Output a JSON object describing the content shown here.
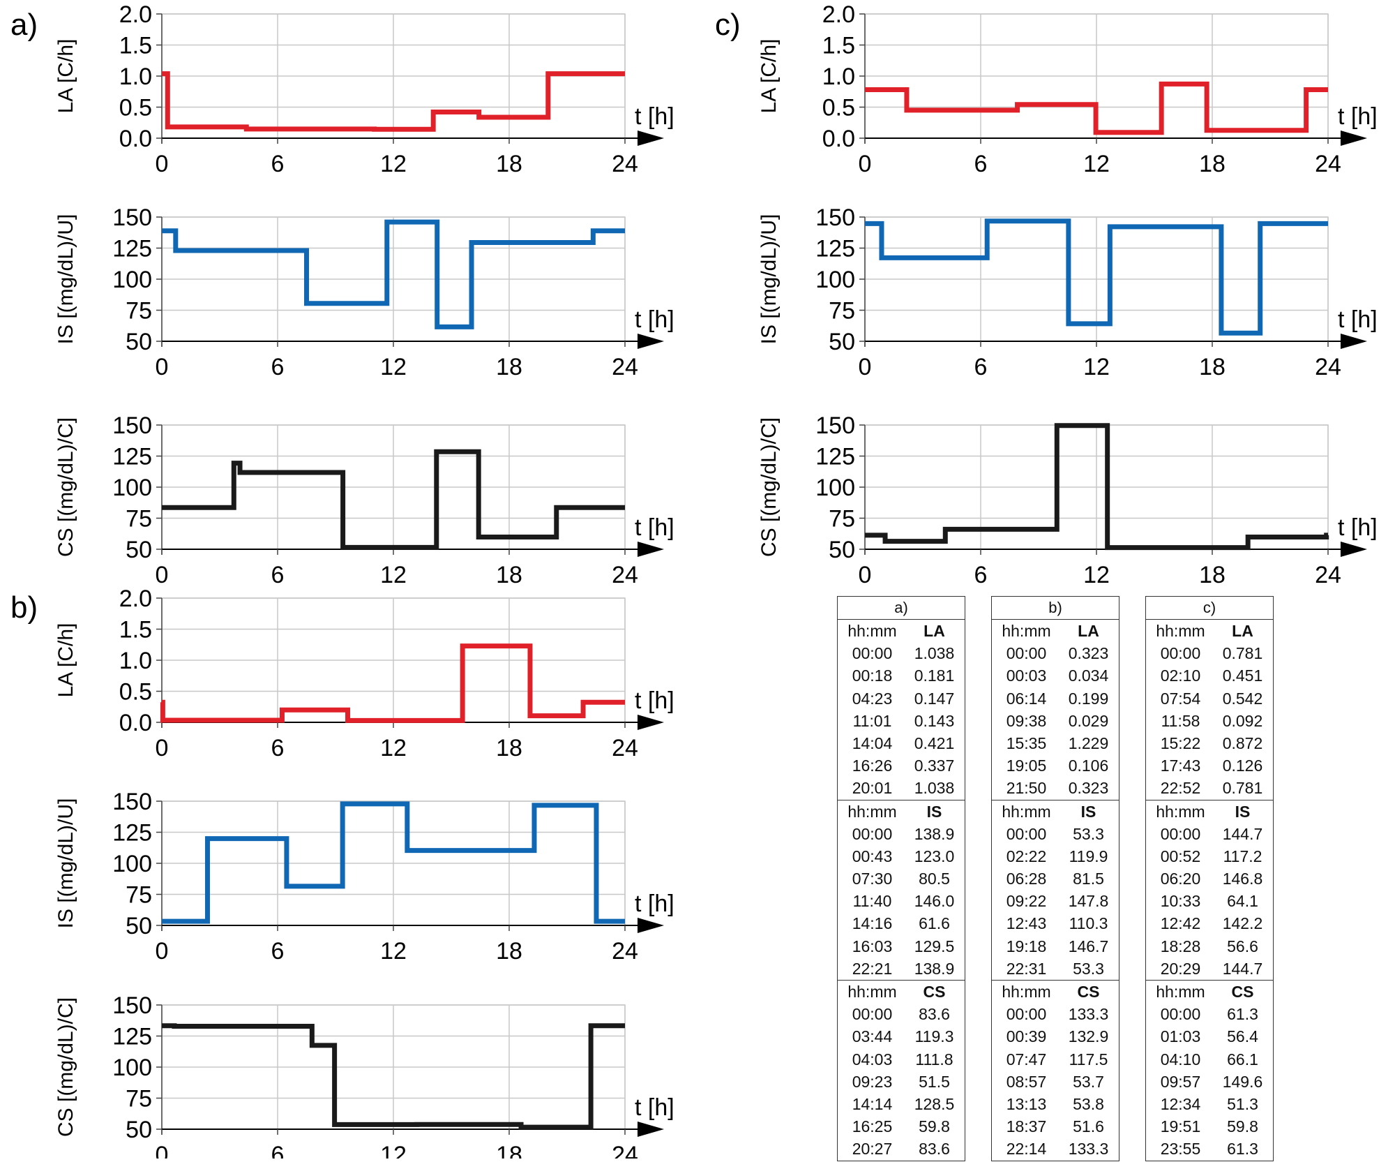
{
  "panel_labels": {
    "a": "a)",
    "b": "b)",
    "c": "c)"
  },
  "axis_labels": {
    "LA": "LA [C/h]",
    "IS": "IS [(mg/dL)/U]",
    "CS": "CS [(mg/dL)/C]",
    "t": "t [h]"
  },
  "colors": {
    "LA": "#e0212a",
    "IS": "#1068b5",
    "CS": "#1a1a1a",
    "grid": "#c8c8c8",
    "axis": "#000000"
  },
  "x_ticks": [
    "0",
    "6",
    "12",
    "18",
    "24"
  ],
  "y_ticks": {
    "LA": [
      "0.0",
      "0.5",
      "1.0",
      "1.5",
      "2.0"
    ],
    "IS": [
      "50",
      "75",
      "100",
      "125",
      "150"
    ],
    "CS": [
      "50",
      "75",
      "100",
      "125",
      "150"
    ]
  },
  "chart_data": [
    {
      "type": "line",
      "panel": "a)",
      "ylabel": "LA [C/h]",
      "xlabel": "t [h]",
      "xlim": [
        0,
        24
      ],
      "ylim": [
        0,
        2
      ],
      "step": true,
      "grid": true,
      "series": [
        {
          "x": [
            "00:00",
            "00:18",
            "04:23",
            "11:01",
            "14:04",
            "16:26",
            "20:01",
            "24:00"
          ],
          "y": [
            1.038,
            0.181,
            0.147,
            0.143,
            0.421,
            0.337,
            1.038,
            1.038
          ]
        }
      ]
    },
    {
      "type": "line",
      "panel": "a)",
      "ylabel": "IS [(mg/dL)/U]",
      "xlabel": "t [h]",
      "xlim": [
        0,
        24
      ],
      "ylim": [
        50,
        150
      ],
      "step": true,
      "grid": true,
      "series": [
        {
          "x": [
            "00:00",
            "00:43",
            "07:30",
            "11:40",
            "14:16",
            "16:03",
            "22:21",
            "24:00"
          ],
          "y": [
            138.9,
            123.0,
            80.5,
            146.0,
            61.6,
            129.5,
            138.9,
            138.9
          ]
        }
      ]
    },
    {
      "type": "line",
      "panel": "a)",
      "ylabel": "CS [(mg/dL)/C]",
      "xlabel": "t [h]",
      "xlim": [
        0,
        24
      ],
      "ylim": [
        50,
        150
      ],
      "step": true,
      "grid": true,
      "series": [
        {
          "x": [
            "00:00",
            "03:44",
            "04:03",
            "09:23",
            "14:14",
            "16:25",
            "20:27",
            "24:00"
          ],
          "y": [
            83.6,
            119.3,
            111.8,
            51.5,
            128.5,
            59.8,
            83.6,
            83.6
          ]
        }
      ]
    },
    {
      "type": "line",
      "panel": "b)",
      "ylabel": "LA [C/h]",
      "xlabel": "t [h]",
      "xlim": [
        0,
        24
      ],
      "ylim": [
        0,
        2
      ],
      "step": true,
      "grid": true,
      "series": [
        {
          "x": [
            "00:00",
            "00:03",
            "06:14",
            "09:38",
            "15:35",
            "19:05",
            "21:50",
            "24:00"
          ],
          "y": [
            0.323,
            0.034,
            0.199,
            0.029,
            1.229,
            0.106,
            0.323,
            0.323
          ]
        }
      ]
    },
    {
      "type": "line",
      "panel": "b)",
      "ylabel": "IS [(mg/dL)/U]",
      "xlabel": "t [h]",
      "xlim": [
        0,
        24
      ],
      "ylim": [
        50,
        150
      ],
      "step": true,
      "grid": true,
      "series": [
        {
          "x": [
            "00:00",
            "02:22",
            "06:28",
            "09:22",
            "12:43",
            "19:18",
            "22:31",
            "24:00"
          ],
          "y": [
            53.3,
            119.9,
            81.5,
            147.8,
            110.3,
            146.7,
            53.3,
            53.3
          ]
        }
      ]
    },
    {
      "type": "line",
      "panel": "b)",
      "ylabel": "CS [(mg/dL)/C]",
      "xlabel": "t [h]",
      "xlim": [
        0,
        24
      ],
      "ylim": [
        50,
        150
      ],
      "step": true,
      "grid": true,
      "series": [
        {
          "x": [
            "00:00",
            "00:39",
            "07:47",
            "08:57",
            "13:13",
            "18:37",
            "22:14",
            "24:00"
          ],
          "y": [
            133.3,
            132.9,
            117.5,
            53.7,
            53.8,
            51.6,
            133.3,
            133.3
          ]
        }
      ]
    },
    {
      "type": "line",
      "panel": "c)",
      "ylabel": "LA [C/h]",
      "xlabel": "t [h]",
      "xlim": [
        0,
        24
      ],
      "ylim": [
        0,
        2
      ],
      "step": true,
      "grid": true,
      "series": [
        {
          "x": [
            "00:00",
            "02:10",
            "07:54",
            "11:58",
            "15:22",
            "17:43",
            "22:52",
            "24:00"
          ],
          "y": [
            0.781,
            0.451,
            0.542,
            0.092,
            0.872,
            0.126,
            0.781,
            0.781
          ]
        }
      ]
    },
    {
      "type": "line",
      "panel": "c)",
      "ylabel": "IS [(mg/dL)/U]",
      "xlabel": "t [h]",
      "xlim": [
        0,
        24
      ],
      "ylim": [
        50,
        150
      ],
      "step": true,
      "grid": true,
      "series": [
        {
          "x": [
            "00:00",
            "00:52",
            "06:20",
            "10:33",
            "12:42",
            "18:28",
            "20:29",
            "24:00"
          ],
          "y": [
            144.7,
            117.2,
            146.8,
            64.1,
            142.2,
            56.6,
            144.7,
            144.7
          ]
        }
      ]
    },
    {
      "type": "line",
      "panel": "c)",
      "ylabel": "CS [(mg/dL)/C]",
      "xlabel": "t [h]",
      "xlim": [
        0,
        24
      ],
      "ylim": [
        50,
        150
      ],
      "step": true,
      "grid": true,
      "series": [
        {
          "x": [
            "00:00",
            "01:03",
            "04:10",
            "09:57",
            "12:34",
            "19:51",
            "23:55",
            "24:00"
          ],
          "y": [
            61.3,
            56.4,
            66.1,
            149.6,
            51.3,
            59.8,
            61.3,
            61.3
          ]
        }
      ]
    }
  ],
  "tables": [
    {
      "title": "a)",
      "sections": [
        {
          "col1": "hh:mm",
          "col2": "LA",
          "rows": [
            [
              "00:00",
              "1.038"
            ],
            [
              "00:18",
              "0.181"
            ],
            [
              "04:23",
              "0.147"
            ],
            [
              "11:01",
              "0.143"
            ],
            [
              "14:04",
              "0.421"
            ],
            [
              "16:26",
              "0.337"
            ],
            [
              "20:01",
              "1.038"
            ]
          ]
        },
        {
          "col1": "hh:mm",
          "col2": "IS",
          "rows": [
            [
              "00:00",
              "138.9"
            ],
            [
              "00:43",
              "123.0"
            ],
            [
              "07:30",
              "80.5"
            ],
            [
              "11:40",
              "146.0"
            ],
            [
              "14:16",
              "61.6"
            ],
            [
              "16:03",
              "129.5"
            ],
            [
              "22:21",
              "138.9"
            ]
          ]
        },
        {
          "col1": "hh:mm",
          "col2": "CS",
          "rows": [
            [
              "00:00",
              "83.6"
            ],
            [
              "03:44",
              "119.3"
            ],
            [
              "04:03",
              "111.8"
            ],
            [
              "09:23",
              "51.5"
            ],
            [
              "14:14",
              "128.5"
            ],
            [
              "16:25",
              "59.8"
            ],
            [
              "20:27",
              "83.6"
            ]
          ]
        }
      ]
    },
    {
      "title": "b)",
      "sections": [
        {
          "col1": "hh:mm",
          "col2": "LA",
          "rows": [
            [
              "00:00",
              "0.323"
            ],
            [
              "00:03",
              "0.034"
            ],
            [
              "06:14",
              "0.199"
            ],
            [
              "09:38",
              "0.029"
            ],
            [
              "15:35",
              "1.229"
            ],
            [
              "19:05",
              "0.106"
            ],
            [
              "21:50",
              "0.323"
            ]
          ]
        },
        {
          "col1": "hh:mm",
          "col2": "IS",
          "rows": [
            [
              "00:00",
              "53.3"
            ],
            [
              "02:22",
              "119.9"
            ],
            [
              "06:28",
              "81.5"
            ],
            [
              "09:22",
              "147.8"
            ],
            [
              "12:43",
              "110.3"
            ],
            [
              "19:18",
              "146.7"
            ],
            [
              "22:31",
              "53.3"
            ]
          ]
        },
        {
          "col1": "hh:mm",
          "col2": "CS",
          "rows": [
            [
              "00:00",
              "133.3"
            ],
            [
              "00:39",
              "132.9"
            ],
            [
              "07:47",
              "117.5"
            ],
            [
              "08:57",
              "53.7"
            ],
            [
              "13:13",
              "53.8"
            ],
            [
              "18:37",
              "51.6"
            ],
            [
              "22:14",
              "133.3"
            ]
          ]
        }
      ]
    },
    {
      "title": "c)",
      "sections": [
        {
          "col1": "hh:mm",
          "col2": "LA",
          "rows": [
            [
              "00:00",
              "0.781"
            ],
            [
              "02:10",
              "0.451"
            ],
            [
              "07:54",
              "0.542"
            ],
            [
              "11:58",
              "0.092"
            ],
            [
              "15:22",
              "0.872"
            ],
            [
              "17:43",
              "0.126"
            ],
            [
              "22:52",
              "0.781"
            ]
          ]
        },
        {
          "col1": "hh:mm",
          "col2": "IS",
          "rows": [
            [
              "00:00",
              "144.7"
            ],
            [
              "00:52",
              "117.2"
            ],
            [
              "06:20",
              "146.8"
            ],
            [
              "10:33",
              "64.1"
            ],
            [
              "12:42",
              "142.2"
            ],
            [
              "18:28",
              "56.6"
            ],
            [
              "20:29",
              "144.7"
            ]
          ]
        },
        {
          "col1": "hh:mm",
          "col2": "CS",
          "rows": [
            [
              "00:00",
              "61.3"
            ],
            [
              "01:03",
              "56.4"
            ],
            [
              "04:10",
              "66.1"
            ],
            [
              "09:57",
              "149.6"
            ],
            [
              "12:34",
              "51.3"
            ],
            [
              "19:51",
              "59.8"
            ],
            [
              "23:55",
              "61.3"
            ]
          ]
        }
      ]
    }
  ]
}
